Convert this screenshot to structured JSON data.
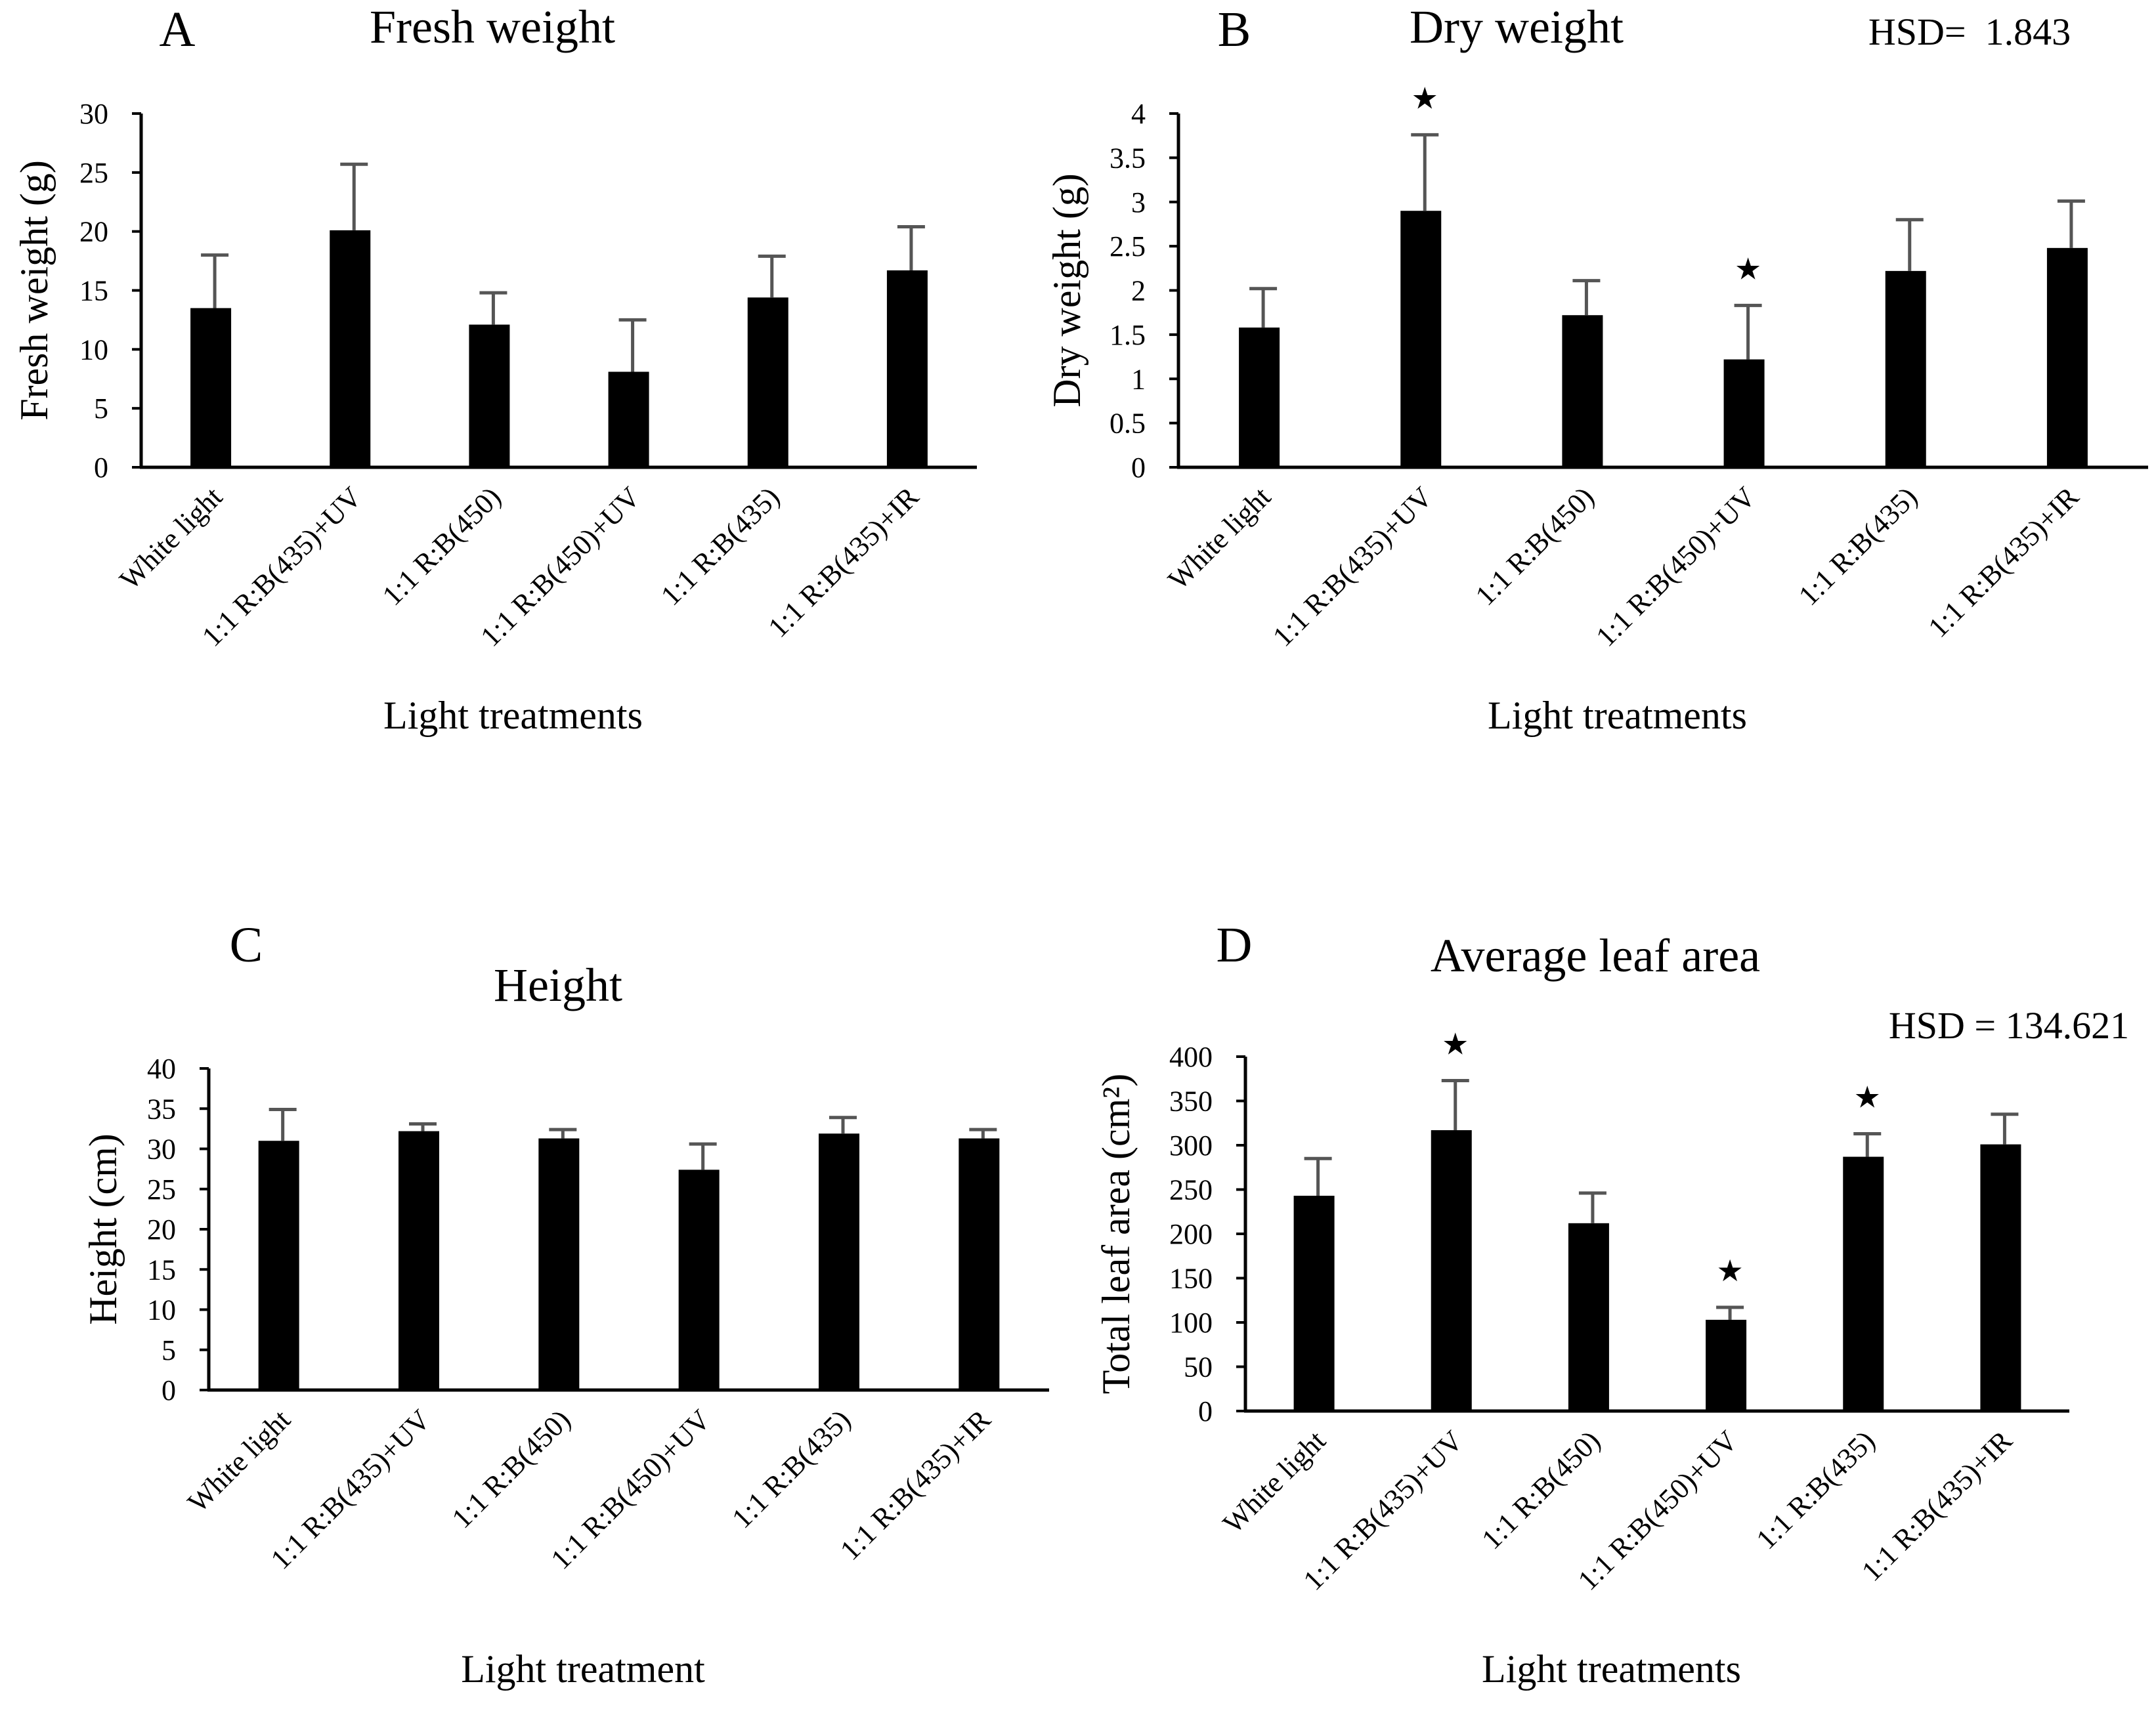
{
  "colors": {
    "bar": "#000000",
    "error_bar": "#555555",
    "axis": "#000000",
    "background": "#ffffff"
  },
  "chart_data": [
    {
      "type": "bar",
      "panel_letter": "A",
      "title": "Fresh weight",
      "xlabel": "Light treatments",
      "ylabel": "Fresh weight (g)",
      "hsd_label": "",
      "ylim": [
        0,
        30
      ],
      "yticks": [
        0,
        5,
        10,
        15,
        20,
        25,
        30
      ],
      "ytick_labels": [
        "0",
        "5",
        "10",
        "15",
        "20",
        "25",
        "30"
      ],
      "grid": false,
      "legend": "none",
      "categories": [
        "White light",
        "1:1 R:B(435)+UV",
        "1:1 R:B(450)",
        "1:1 R:B(450)+UV",
        "1:1 R:B(435)",
        "1:1 R:B(435)+IR"
      ],
      "values": [
        13.5,
        20.1,
        12.1,
        8.1,
        14.4,
        16.7
      ],
      "errors": [
        4.5,
        5.6,
        2.7,
        4.4,
        3.5,
        3.7
      ],
      "significance": [
        "",
        "",
        "",
        "",
        "",
        ""
      ]
    },
    {
      "type": "bar",
      "panel_letter": "B",
      "title": "Dry weight",
      "xlabel": "Light treatments",
      "ylabel": "Dry weight (g)",
      "hsd_label": "HSD=  1.843",
      "ylim": [
        0,
        4
      ],
      "yticks": [
        0,
        0.5,
        1,
        1.5,
        2,
        2.5,
        3,
        3.5,
        4
      ],
      "ytick_labels": [
        "0",
        "0.5",
        "1",
        "1.5",
        "2",
        "2.5",
        "3",
        "3.5",
        "4"
      ],
      "grid": false,
      "legend": "none",
      "categories": [
        "White light",
        "1:1 R:B(435)+UV",
        "1:1 R:B(450)",
        "1:1 R:B(450)+UV",
        "1:1 R:B(435)",
        "1:1 R:B(435)+IR"
      ],
      "values": [
        1.58,
        2.9,
        1.72,
        1.22,
        2.22,
        2.48
      ],
      "errors": [
        0.44,
        0.86,
        0.39,
        0.61,
        0.58,
        0.53
      ],
      "significance": [
        "",
        "★",
        "",
        "★",
        "",
        ""
      ]
    },
    {
      "type": "bar",
      "panel_letter": "C",
      "title": "Height",
      "xlabel": "Light treatment",
      "ylabel": "Height (cm)",
      "hsd_label": "",
      "ylim": [
        0,
        40
      ],
      "yticks": [
        0,
        5,
        10,
        15,
        20,
        25,
        30,
        35,
        40
      ],
      "ytick_labels": [
        "0",
        "5",
        "10",
        "15",
        "20",
        "25",
        "30",
        "35",
        "40"
      ],
      "grid": false,
      "legend": "none",
      "categories": [
        "White light",
        "1:1 R:B(435)+UV",
        "1:1 R:B(450)",
        "1:1 R:B(450)+UV",
        "1:1 R:B(435)",
        "1:1 R:B(435)+IR"
      ],
      "values": [
        31,
        32.2,
        31.3,
        27.4,
        31.9,
        31.3
      ],
      "errors": [
        3.9,
        0.9,
        1.1,
        3.2,
        2.0,
        1.1
      ],
      "significance": [
        "",
        "",
        "",
        "",
        "",
        ""
      ]
    },
    {
      "type": "bar",
      "panel_letter": "D",
      "title": "Average leaf area",
      "xlabel": "Light treatments",
      "ylabel": "Total leaf area (cm²)",
      "hsd_label": "HSD = 134.621",
      "ylim": [
        0,
        400
      ],
      "yticks": [
        0,
        50,
        100,
        150,
        200,
        250,
        300,
        350,
        400
      ],
      "ytick_labels": [
        "0",
        "50",
        "100",
        "150",
        "200",
        "250",
        "300",
        "350",
        "400"
      ],
      "grid": false,
      "legend": "none",
      "categories": [
        "White light",
        "1:1 R:B(435)+UV",
        "1:1 R:B(450)",
        "1:1 R:B(450)+UV",
        "1:1 R:B(435)",
        "1:1 R:B(435)+IR"
      ],
      "values": [
        243,
        317,
        212,
        103,
        287,
        301
      ],
      "errors": [
        42,
        56,
        34,
        14,
        26,
        34
      ],
      "significance": [
        "",
        "★",
        "",
        "★",
        "★",
        ""
      ]
    }
  ]
}
